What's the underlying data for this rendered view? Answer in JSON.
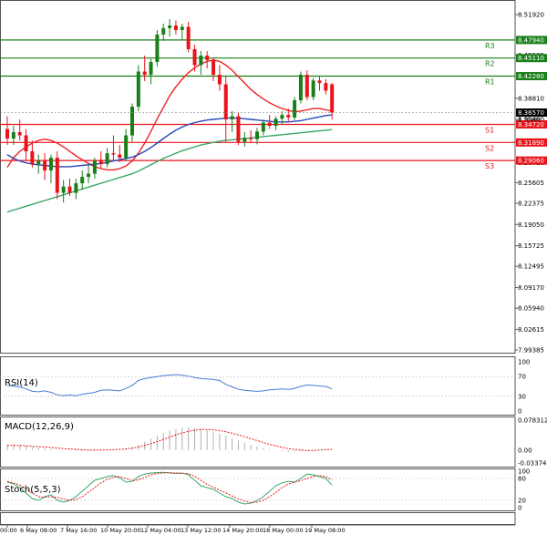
{
  "chart_data": [
    {
      "type": "candlestick",
      "title": "",
      "price_axis_ticks": [
        "8.51920",
        "8.45585",
        "8.38810",
        "8.35490",
        "8.32040",
        "8.28710",
        "8.25605",
        "8.22375",
        "8.19050",
        "8.15725",
        "8.12495",
        "8.09170",
        "8.05940",
        "8.02615",
        "7.99385"
      ],
      "price_axis_values": [
        8.5192,
        8.45585,
        8.3881,
        8.3549,
        8.3204,
        8.2871,
        8.25605,
        8.22375,
        8.1905,
        8.15725,
        8.12495,
        8.0917,
        8.0594,
        8.02615,
        7.99385
      ],
      "time_axis_labels": [
        "00:00",
        "6 May 08:00",
        "7 May 16:00",
        "10 May 20:00",
        "12 May 04:00",
        "13 May 12:00",
        "14 May 20:00",
        "18 May 00:00",
        "19 May 08:00"
      ],
      "ylim": [
        7.9939,
        8.5192
      ],
      "current_price": {
        "label": "8.36570",
        "value": 8.3657
      },
      "price_tag_overlap": "8.36490",
      "levels": [
        {
          "name": "R3",
          "value": 8.4794,
          "label": "8.47940",
          "color": "#1a7f1a"
        },
        {
          "name": "R2",
          "value": 8.4511,
          "label": "8.45110",
          "color": "#1a7f1a"
        },
        {
          "name": "R1",
          "value": 8.4228,
          "label": "8.42280",
          "color": "#1a7f1a"
        },
        {
          "name": "S1",
          "value": 8.3472,
          "label": "8.34720",
          "color": "#e8141b"
        },
        {
          "name": "S2",
          "value": 8.3189,
          "label": "8.31890",
          "color": "#e8141b"
        },
        {
          "name": "S3",
          "value": 8.2906,
          "label": "8.29060",
          "color": "#e8141b"
        }
      ],
      "candles": [
        {
          "o": 8.34,
          "h": 8.36,
          "l": 8.315,
          "c": 8.325
        },
        {
          "o": 8.325,
          "h": 8.345,
          "l": 8.315,
          "c": 8.335
        },
        {
          "o": 8.335,
          "h": 8.355,
          "l": 8.322,
          "c": 8.33
        },
        {
          "o": 8.33,
          "h": 8.34,
          "l": 8.29,
          "c": 8.305
        },
        {
          "o": 8.305,
          "h": 8.322,
          "l": 8.28,
          "c": 8.285
        },
        {
          "o": 8.285,
          "h": 8.3,
          "l": 8.27,
          "c": 8.29
        },
        {
          "o": 8.29,
          "h": 8.302,
          "l": 8.26,
          "c": 8.275
        },
        {
          "o": 8.275,
          "h": 8.3,
          "l": 8.255,
          "c": 8.295
        },
        {
          "o": 8.295,
          "h": 8.305,
          "l": 8.23,
          "c": 8.24
        },
        {
          "o": 8.24,
          "h": 8.26,
          "l": 8.225,
          "c": 8.25
        },
        {
          "o": 8.25,
          "h": 8.262,
          "l": 8.235,
          "c": 8.24
        },
        {
          "o": 8.24,
          "h": 8.262,
          "l": 8.23,
          "c": 8.255
        },
        {
          "o": 8.255,
          "h": 8.275,
          "l": 8.245,
          "c": 8.265
        },
        {
          "o": 8.265,
          "h": 8.285,
          "l": 8.255,
          "c": 8.27
        },
        {
          "o": 8.27,
          "h": 8.295,
          "l": 8.262,
          "c": 8.29
        },
        {
          "o": 8.29,
          "h": 8.305,
          "l": 8.278,
          "c": 8.285
        },
        {
          "o": 8.285,
          "h": 8.31,
          "l": 8.28,
          "c": 8.302
        },
        {
          "o": 8.302,
          "h": 8.33,
          "l": 8.29,
          "c": 8.3
        },
        {
          "o": 8.3,
          "h": 8.315,
          "l": 8.288,
          "c": 8.295
        },
        {
          "o": 8.295,
          "h": 8.34,
          "l": 8.29,
          "c": 8.33
        },
        {
          "o": 8.33,
          "h": 8.38,
          "l": 8.32,
          "c": 8.375
        },
        {
          "o": 8.375,
          "h": 8.44,
          "l": 8.368,
          "c": 8.43
        },
        {
          "o": 8.43,
          "h": 8.455,
          "l": 8.415,
          "c": 8.425
        },
        {
          "o": 8.425,
          "h": 8.45,
          "l": 8.41,
          "c": 8.445
        },
        {
          "o": 8.445,
          "h": 8.495,
          "l": 8.438,
          "c": 8.488
        },
        {
          "o": 8.488,
          "h": 8.505,
          "l": 8.478,
          "c": 8.498
        },
        {
          "o": 8.498,
          "h": 8.512,
          "l": 8.485,
          "c": 8.502
        },
        {
          "o": 8.502,
          "h": 8.51,
          "l": 8.488,
          "c": 8.495
        },
        {
          "o": 8.495,
          "h": 8.505,
          "l": 8.48,
          "c": 8.5
        },
        {
          "o": 8.5,
          "h": 8.508,
          "l": 8.46,
          "c": 8.465
        },
        {
          "o": 8.465,
          "h": 8.472,
          "l": 8.43,
          "c": 8.44
        },
        {
          "o": 8.44,
          "h": 8.462,
          "l": 8.425,
          "c": 8.455
        },
        {
          "o": 8.455,
          "h": 8.462,
          "l": 8.435,
          "c": 8.448
        },
        {
          "o": 8.448,
          "h": 8.452,
          "l": 8.415,
          "c": 8.425
        },
        {
          "o": 8.425,
          "h": 8.44,
          "l": 8.4,
          "c": 8.41
        },
        {
          "o": 8.41,
          "h": 8.422,
          "l": 8.32,
          "c": 8.355
        },
        {
          "o": 8.355,
          "h": 8.368,
          "l": 8.335,
          "c": 8.36
        },
        {
          "o": 8.36,
          "h": 8.365,
          "l": 8.315,
          "c": 8.32
        },
        {
          "o": 8.32,
          "h": 8.335,
          "l": 8.312,
          "c": 8.326
        },
        {
          "o": 8.326,
          "h": 8.338,
          "l": 8.318,
          "c": 8.324
        },
        {
          "o": 8.324,
          "h": 8.342,
          "l": 8.316,
          "c": 8.336
        },
        {
          "o": 8.336,
          "h": 8.355,
          "l": 8.33,
          "c": 8.35
        },
        {
          "o": 8.35,
          "h": 8.362,
          "l": 8.34,
          "c": 8.345
        },
        {
          "o": 8.345,
          "h": 8.36,
          "l": 8.338,
          "c": 8.356
        },
        {
          "o": 8.356,
          "h": 8.368,
          "l": 8.348,
          "c": 8.362
        },
        {
          "o": 8.362,
          "h": 8.372,
          "l": 8.352,
          "c": 8.358
        },
        {
          "o": 8.358,
          "h": 8.39,
          "l": 8.354,
          "c": 8.385
        },
        {
          "o": 8.385,
          "h": 8.43,
          "l": 8.38,
          "c": 8.425
        },
        {
          "o": 8.425,
          "h": 8.432,
          "l": 8.385,
          "c": 8.39
        },
        {
          "o": 8.39,
          "h": 8.42,
          "l": 8.385,
          "c": 8.416
        },
        {
          "o": 8.416,
          "h": 8.422,
          "l": 8.4,
          "c": 8.412
        },
        {
          "o": 8.412,
          "h": 8.418,
          "l": 8.394,
          "c": 8.4
        },
        {
          "o": 8.41,
          "h": 8.412,
          "l": 8.355,
          "c": 8.3657
        }
      ],
      "moving_averages": [
        {
          "name": "red",
          "color": "#ee2222",
          "values": [
            8.28,
            8.295,
            8.305,
            8.312,
            8.318,
            8.322,
            8.324,
            8.322,
            8.318,
            8.312,
            8.305,
            8.298,
            8.292,
            8.286,
            8.281,
            8.278,
            8.276,
            8.276,
            8.278,
            8.282,
            8.29,
            8.302,
            8.318,
            8.336,
            8.356,
            8.374,
            8.392,
            8.406,
            8.418,
            8.428,
            8.436,
            8.442,
            8.446,
            8.448,
            8.446,
            8.44,
            8.432,
            8.422,
            8.412,
            8.402,
            8.394,
            8.387,
            8.381,
            8.376,
            8.372,
            8.369,
            8.367,
            8.368,
            8.37,
            8.372,
            8.372,
            8.37,
            8.368
          ]
        },
        {
          "name": "blue",
          "color": "#2747b8",
          "values": [
            8.3,
            8.294,
            8.29,
            8.287,
            8.285,
            8.284,
            8.283,
            8.282,
            8.281,
            8.281,
            8.281,
            8.282,
            8.283,
            8.284,
            8.285,
            8.286,
            8.288,
            8.29,
            8.292,
            8.294,
            8.296,
            8.3,
            8.305,
            8.311,
            8.318,
            8.325,
            8.332,
            8.338,
            8.343,
            8.347,
            8.35,
            8.352,
            8.354,
            8.355,
            8.356,
            8.357,
            8.357,
            8.357,
            8.356,
            8.355,
            8.354,
            8.353,
            8.352,
            8.351,
            8.351,
            8.351,
            8.352,
            8.353,
            8.355,
            8.357,
            8.359,
            8.361,
            8.362
          ]
        },
        {
          "name": "green",
          "color": "#3aa86a",
          "values": [
            8.21,
            8.213,
            8.216,
            8.219,
            8.222,
            8.225,
            8.228,
            8.231,
            8.234,
            8.237,
            8.24,
            8.243,
            8.246,
            8.249,
            8.252,
            8.255,
            8.258,
            8.261,
            8.264,
            8.267,
            8.27,
            8.274,
            8.279,
            8.284,
            8.289,
            8.294,
            8.298,
            8.302,
            8.306,
            8.309,
            8.312,
            8.315,
            8.317,
            8.319,
            8.321,
            8.322,
            8.323,
            8.324,
            8.325,
            8.326,
            8.327,
            8.328,
            8.329,
            8.33,
            8.331,
            8.332,
            8.333,
            8.334,
            8.335,
            8.336,
            8.337,
            8.338,
            8.339
          ]
        }
      ]
    },
    {
      "type": "line",
      "name": "RSI(14)",
      "label": "RSI(14)",
      "ticks": [
        "100",
        "70",
        "30",
        "0"
      ],
      "tick_values": [
        100,
        70,
        30,
        0
      ],
      "ylim": [
        0,
        100
      ],
      "series": [
        {
          "name": "RSI(14)",
          "color": "#4c7cd6",
          "values": [
            52,
            50,
            49,
            45,
            40,
            39,
            41,
            38,
            33,
            31,
            33,
            31,
            34,
            36,
            38,
            42,
            43,
            42,
            41,
            46,
            52,
            62,
            66,
            68,
            70,
            72,
            73,
            74,
            73,
            71,
            68,
            66,
            65,
            64,
            62,
            54,
            49,
            44,
            42,
            41,
            40,
            41,
            43,
            44,
            45,
            44,
            46,
            50,
            53,
            52,
            51,
            50,
            45
          ]
        }
      ],
      "levels": [
        70,
        30
      ]
    },
    {
      "type": "bar",
      "name": "MACD(12,26,9)",
      "label": "MACD(12,26,9)",
      "ticks": [
        "0.078312",
        "0.00",
        "-0.033747"
      ],
      "tick_values": [
        0.078312,
        0.0,
        -0.033747
      ],
      "ylim": [
        -0.033747,
        0.078312
      ],
      "series": [
        {
          "name": "histogram",
          "color": "#b0b0b0",
          "values": [
            0.015,
            0.014,
            0.013,
            0.011,
            0.009,
            0.007,
            0.005,
            0.003,
            0.001,
            -0.001,
            -0.002,
            -0.003,
            -0.003,
            -0.003,
            -0.002,
            -0.001,
            0.0,
            0.001,
            0.002,
            0.004,
            0.008,
            0.014,
            0.022,
            0.03,
            0.038,
            0.045,
            0.051,
            0.055,
            0.058,
            0.059,
            0.058,
            0.056,
            0.052,
            0.048,
            0.043,
            0.037,
            0.031,
            0.025,
            0.019,
            0.014,
            0.009,
            0.005,
            0.002,
            -0.001,
            -0.003,
            -0.004,
            -0.004,
            -0.003,
            -0.002,
            -0.001,
            0.0,
            0.001,
            0.002
          ]
        },
        {
          "name": "signal",
          "color": "#e8141b",
          "values": [
            0.012,
            0.012,
            0.012,
            0.011,
            0.01,
            0.009,
            0.008,
            0.007,
            0.005,
            0.004,
            0.003,
            0.002,
            0.001,
            0.0,
            0.0,
            0.0,
            0.0,
            0.001,
            0.002,
            0.003,
            0.005,
            0.008,
            0.012,
            0.017,
            0.022,
            0.028,
            0.034,
            0.04,
            0.045,
            0.049,
            0.052,
            0.054,
            0.054,
            0.053,
            0.051,
            0.048,
            0.044,
            0.04,
            0.035,
            0.03,
            0.025,
            0.02,
            0.015,
            0.011,
            0.007,
            0.004,
            0.002,
            0.0,
            -0.001,
            -0.001,
            0.0,
            0.001,
            0.002
          ]
        }
      ]
    },
    {
      "type": "line",
      "name": "Stoch(5,5,3)",
      "label": "Stoch(5,5,3)",
      "ticks": [
        "100",
        "80",
        "20",
        "0"
      ],
      "tick_values": [
        100,
        80,
        20,
        0
      ],
      "ylim": [
        0,
        100
      ],
      "series": [
        {
          "name": "%K",
          "color": "#3aa86a",
          "values": [
            70,
            65,
            55,
            40,
            25,
            20,
            30,
            35,
            20,
            15,
            20,
            30,
            45,
            60,
            75,
            80,
            85,
            88,
            82,
            70,
            72,
            85,
            92,
            95,
            96,
            97,
            95,
            94,
            95,
            90,
            75,
            60,
            55,
            50,
            40,
            30,
            25,
            15,
            10,
            12,
            20,
            30,
            45,
            60,
            68,
            72,
            70,
            80,
            92,
            90,
            85,
            80,
            62
          ]
        },
        {
          "name": "%D",
          "color": "#e8141b",
          "values": [
            72,
            68,
            62,
            52,
            40,
            30,
            28,
            30,
            28,
            23,
            20,
            22,
            30,
            42,
            55,
            68,
            78,
            83,
            85,
            80,
            74,
            76,
            83,
            90,
            94,
            95,
            96,
            95,
            94,
            93,
            86,
            75,
            64,
            56,
            48,
            40,
            32,
            24,
            18,
            14,
            15,
            20,
            30,
            42,
            55,
            65,
            70,
            74,
            80,
            86,
            88,
            85,
            76
          ]
        }
      ],
      "levels": [
        80,
        20
      ]
    }
  ]
}
